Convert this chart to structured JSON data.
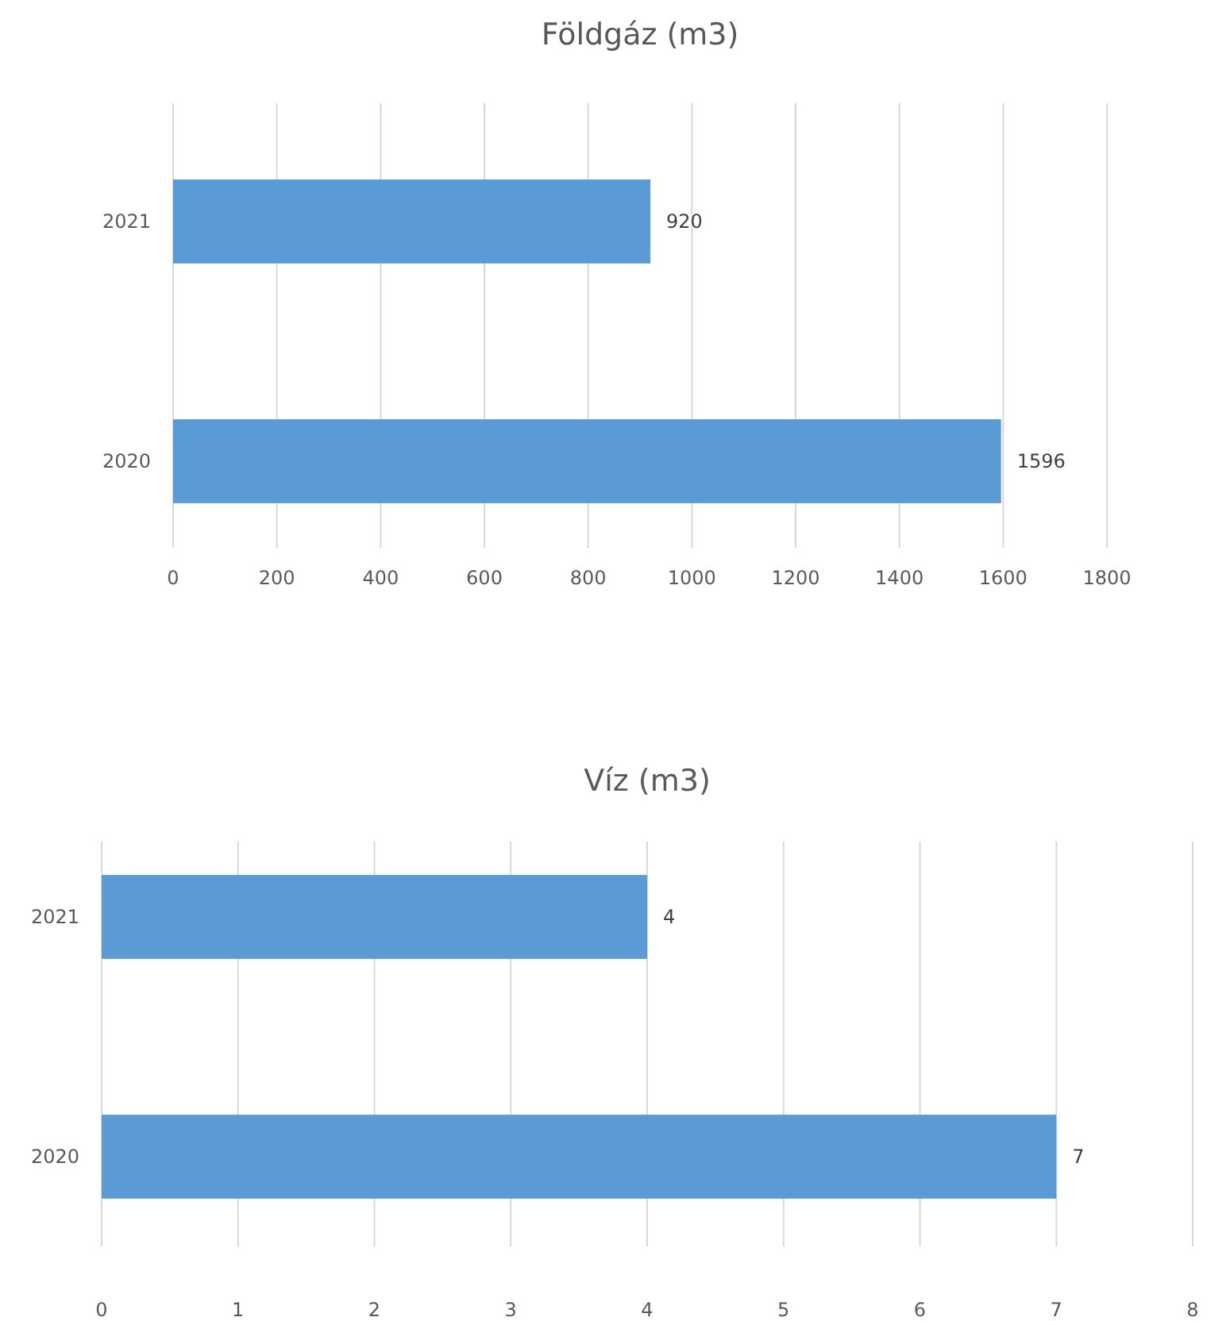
{
  "chart_data": [
    {
      "type": "bar",
      "orientation": "horizontal",
      "title": "Földgáz (m3)",
      "categories": [
        "2021",
        "2020"
      ],
      "values": [
        920,
        1596
      ],
      "color": "#5b9bd5",
      "xlim": [
        0,
        1800
      ],
      "xticks": [
        0,
        200,
        400,
        600,
        800,
        1000,
        1200,
        1400,
        1600,
        1800
      ],
      "grid": "x",
      "data_labels": true
    },
    {
      "type": "bar",
      "orientation": "horizontal",
      "title": "Víz (m3)",
      "categories": [
        "2021",
        "2020"
      ],
      "values": [
        4,
        7
      ],
      "color": "#5b9bd5",
      "xlim": [
        0,
        8
      ],
      "xticks": [
        0,
        1,
        2,
        3,
        4,
        5,
        6,
        7,
        8
      ],
      "grid": "x",
      "data_labels": true
    }
  ]
}
